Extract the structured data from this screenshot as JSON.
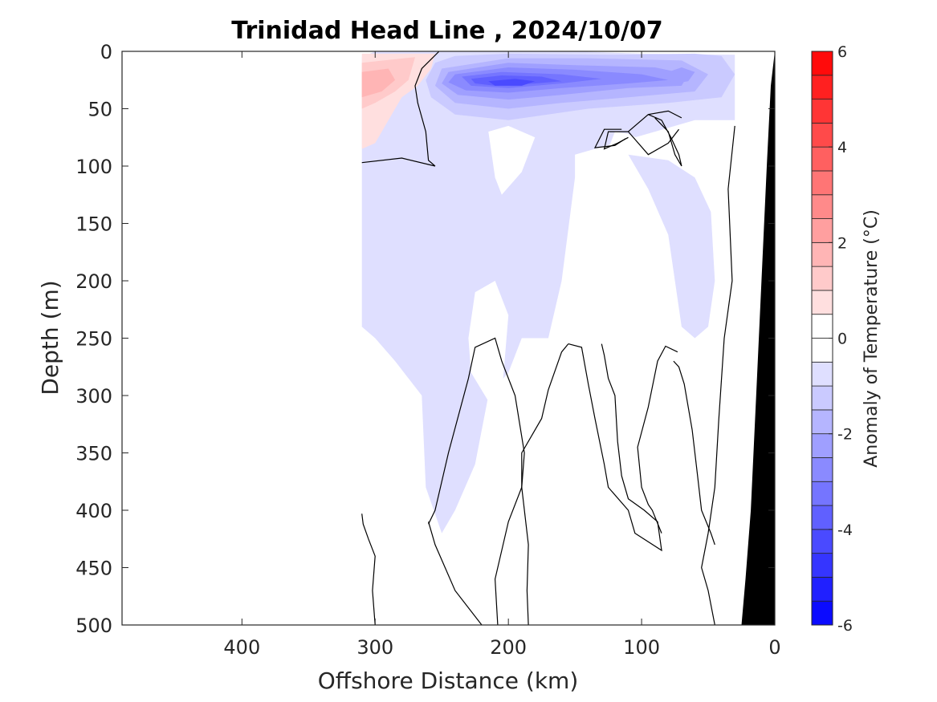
{
  "chart_data": {
    "type": "heatmap",
    "subtype": "filled-contour-section",
    "title": "Trinidad Head Line , 2024/10/07",
    "xlabel": "Offshore Distance (km)",
    "ylabel": "Depth (m)",
    "colorbar_label": "Anomaly of Temperature (°C)",
    "x_reversed": true,
    "y_reversed": true,
    "xlim": [
      0,
      490
    ],
    "ylim": [
      0,
      500
    ],
    "x_ticks": [
      "400",
      "300",
      "200",
      "100",
      "0"
    ],
    "x_tick_values": [
      400,
      300,
      200,
      100,
      0
    ],
    "y_ticks": [
      "0",
      "50",
      "100",
      "150",
      "200",
      "250",
      "300",
      "350",
      "400",
      "450",
      "500"
    ],
    "y_tick_values": [
      0,
      50,
      100,
      150,
      200,
      250,
      300,
      350,
      400,
      450,
      500
    ],
    "colorbar": {
      "range": [
        -6,
        6
      ],
      "step": 0.5,
      "ticks": [
        "-6",
        "-4",
        "-2",
        "0",
        "2",
        "4",
        "6"
      ],
      "tick_values": [
        -6,
        -4,
        -2,
        0,
        2,
        4,
        6
      ],
      "positive_color": "#ff0000",
      "negative_color": "#0000ff",
      "zero_color": "#ffffff"
    },
    "data_extent_km": [
      0,
      310
    ],
    "features": [
      {
        "name": "surface warm anomaly",
        "x_range_km": [
          255,
          310
        ],
        "depth_range_m": [
          0,
          85
        ],
        "peak_anomaly": 1.5,
        "peak_at": {
          "x_km": 295,
          "depth_m": 28
        }
      },
      {
        "name": "near-surface cold core",
        "x_range_km": [
          150,
          250
        ],
        "depth_range_m": [
          5,
          75
        ],
        "peak_anomaly": -4.5,
        "peak_at": {
          "x_km": 190,
          "depth_m": 28
        }
      },
      {
        "name": "cold anomaly offshore of 90 km",
        "x_range_km": [
          45,
          150
        ],
        "depth_range_m": [
          5,
          60
        ],
        "peak_anomaly": -2.5,
        "peak_at": {
          "x_km": 70,
          "depth_m": 22
        }
      },
      {
        "name": "deep weak cold anomaly",
        "x_range_km": [
          150,
          310
        ],
        "depth_range_m": [
          60,
          420
        ],
        "peak_anomaly": -0.75
      }
    ],
    "zero_contour_lines": true,
    "bathymetry_fill": "#000000"
  }
}
